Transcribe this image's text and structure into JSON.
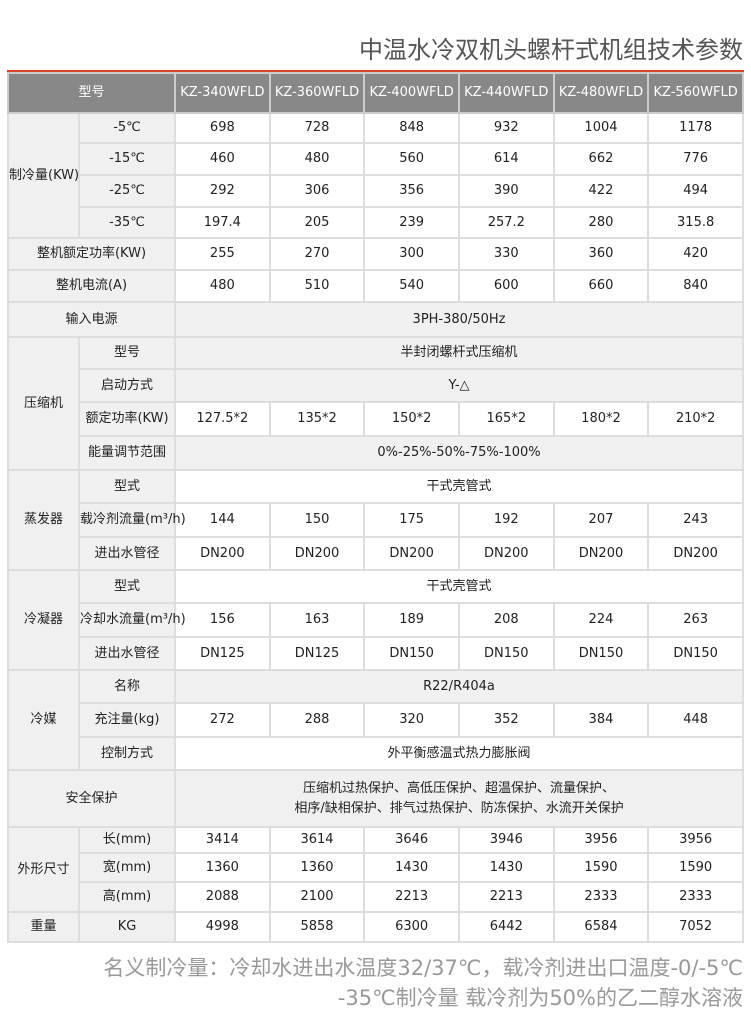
{
  "title": "中温水冷双机头螺杆式机组技术参数",
  "accent_color": "#d9442a",
  "header": {
    "label": "型号",
    "models": [
      "KZ-340WFLD",
      "KZ-360WFLD",
      "KZ-400WFLD",
      "KZ-440WFLD",
      "KZ-480WFLD",
      "KZ-560WFLD"
    ]
  },
  "sections": [
    {
      "name": "制冷量(KW)",
      "rows": [
        {
          "label": "-5℃",
          "values": [
            "698",
            "728",
            "848",
            "932",
            "1004",
            "1178"
          ]
        },
        {
          "label": "-15℃",
          "values": [
            "460",
            "480",
            "560",
            "614",
            "662",
            "776"
          ]
        },
        {
          "label": "-25℃",
          "values": [
            "292",
            "306",
            "356",
            "390",
            "422",
            "494"
          ]
        },
        {
          "label": "-35℃",
          "values": [
            "197.4",
            "205",
            "239",
            "257.2",
            "280",
            "315.8"
          ]
        }
      ]
    },
    {
      "name": "整机额定功率(KW)",
      "values": [
        "255",
        "270",
        "300",
        "330",
        "360",
        "420"
      ]
    },
    {
      "name": "整机电流(A)",
      "values": [
        "480",
        "510",
        "540",
        "600",
        "660",
        "840"
      ]
    },
    {
      "name": "输入电源",
      "value": "3PH-380/50Hz"
    },
    {
      "name": "压缩机",
      "rows": [
        {
          "label": "型号",
          "value": "半封闭螺杆式压缩机"
        },
        {
          "label": "启动方式",
          "value": "Y-△"
        },
        {
          "label": "额定功率(KW)",
          "values": [
            "127.5*2",
            "135*2",
            "150*2",
            "165*2",
            "180*2",
            "210*2"
          ]
        },
        {
          "label": "能量调节范围",
          "value": "0%-25%-50%-75%-100%"
        }
      ]
    },
    {
      "name": "蒸发器",
      "rows": [
        {
          "label": "型式",
          "value": "干式壳管式"
        },
        {
          "label": "载冷剂流量(m³/h)",
          "values": [
            "144",
            "150",
            "175",
            "192",
            "207",
            "243"
          ]
        },
        {
          "label": "进出水管径",
          "values": [
            "DN200",
            "DN200",
            "DN200",
            "DN200",
            "DN200",
            "DN200"
          ]
        }
      ]
    },
    {
      "name": "冷凝器",
      "rows": [
        {
          "label": "型式",
          "value": "干式壳管式"
        },
        {
          "label": "冷却水流量(m³/h)",
          "values": [
            "156",
            "163",
            "189",
            "208",
            "224",
            "263"
          ]
        },
        {
          "label": "进出水管径",
          "values": [
            "DN125",
            "DN125",
            "DN150",
            "DN150",
            "DN150",
            "DN150"
          ]
        }
      ]
    },
    {
      "name": "冷媒",
      "rows": [
        {
          "label": "名称",
          "value": "R22/R404a"
        },
        {
          "label": "充注量(kg)",
          "values": [
            "272",
            "288",
            "320",
            "352",
            "384",
            "448"
          ]
        },
        {
          "label": "控制方式",
          "value": "外平衡感温式热力膨胀阀"
        }
      ]
    },
    {
      "name": "安全保护",
      "value": "压缩机过热保护、高低压保护、超温保护、流量保护、",
      "value2": "相序/缺相保护、排气过热保护、防冻保护、水流开关保护"
    },
    {
      "name": "外形尺寸",
      "rows": [
        {
          "label": "长(mm)",
          "values": [
            "3414",
            "3614",
            "3646",
            "3946",
            "3956",
            "3956"
          ]
        },
        {
          "label": "宽(mm)",
          "values": [
            "1360",
            "1360",
            "1430",
            "1430",
            "1590",
            "1590"
          ]
        },
        {
          "label": "高(mm)",
          "values": [
            "2088",
            "2100",
            "2213",
            "2213",
            "2333",
            "2333"
          ]
        }
      ]
    },
    {
      "name": "重量",
      "rows": [
        {
          "label": "KG",
          "values": [
            "4998",
            "5858",
            "6300",
            "6442",
            "6584",
            "7052"
          ]
        }
      ]
    }
  ],
  "notes": [
    "名义制冷量：冷却水进出水温度32/37℃，载冷剂进出口温度-0/-5℃",
    "-35℃制冷量   载冷剂为50%的乙二醇水溶液"
  ]
}
